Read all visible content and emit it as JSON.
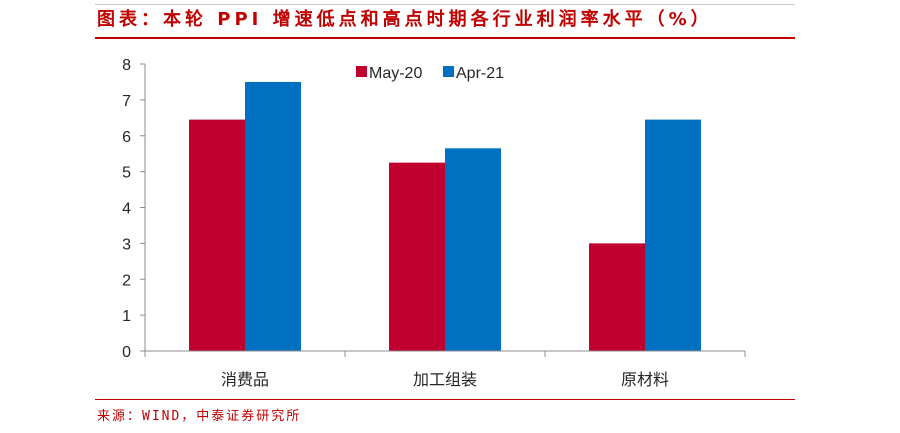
{
  "title": "图表：本轮 PPI 增速低点和高点时期各行业利润率水平（%）",
  "source": "来源：WIND，中泰证券研究所",
  "colors": {
    "accent": "#c00000",
    "axis": "#8c8c8c"
  },
  "chart_data": {
    "type": "bar",
    "title": "图表：本轮 PPI 增速低点和高点时期各行业利润率水平（%）",
    "categories": [
      "消费品",
      "加工组装",
      "原材料"
    ],
    "series": [
      {
        "name": "May-20",
        "values": [
          6.45,
          5.25,
          3.0
        ],
        "color": "#c0002f"
      },
      {
        "name": "Apr-21",
        "values": [
          7.5,
          5.65,
          6.45
        ],
        "color": "#0070c0"
      }
    ],
    "ylim": [
      0,
      8
    ],
    "yticks": [
      0,
      1,
      2,
      3,
      4,
      5,
      6,
      7,
      8
    ],
    "xlabel": "",
    "ylabel": "",
    "grid": false,
    "legend": "top-center"
  }
}
